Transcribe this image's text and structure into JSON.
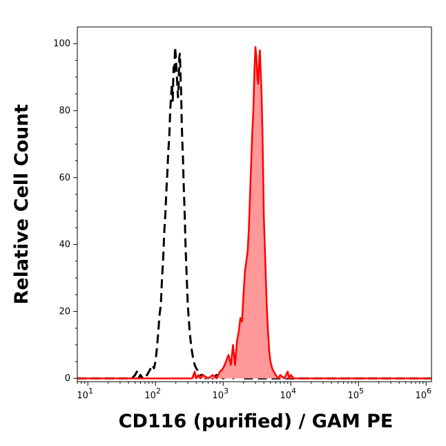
{
  "chart_data": {
    "type": "area",
    "title": "",
    "xlabel": "CD116 (purified) / GAM PE",
    "ylabel": "Relative Cell Count",
    "x_scale": "log",
    "xlim": [
      7,
      1200000
    ],
    "ylim": [
      -1,
      105
    ],
    "x_ticks": [
      {
        "base": "10",
        "exp": "1",
        "value": 10
      },
      {
        "base": "10",
        "exp": "2",
        "value": 100
      },
      {
        "base": "10",
        "exp": "3",
        "value": 1000
      },
      {
        "base": "10",
        "exp": "4",
        "value": 10000
      },
      {
        "base": "10",
        "exp": "5",
        "value": 100000
      },
      {
        "base": "10",
        "exp": "6",
        "value": 1000000
      }
    ],
    "y_ticks": [
      {
        "label": "0",
        "value": 0
      },
      {
        "label": "20",
        "value": 20
      },
      {
        "label": "40",
        "value": 40
      },
      {
        "label": "60",
        "value": 60
      },
      {
        "label": "80",
        "value": 80
      },
      {
        "label": "100",
        "value": 100
      }
    ],
    "grid": false,
    "legend": "none",
    "series": [
      {
        "style": "dashed",
        "color": "#000000",
        "fill": "none",
        "x": [
          7,
          45,
          50,
          53,
          56,
          60,
          65,
          70,
          75,
          80,
          85,
          90,
          95,
          100,
          105,
          110,
          115,
          120,
          125,
          130,
          135,
          140,
          145,
          150,
          155,
          160,
          165,
          170,
          175,
          180,
          185,
          190,
          195,
          200,
          205,
          210,
          215,
          220,
          225,
          230,
          235,
          240,
          245,
          250,
          255,
          260,
          270,
          280,
          290,
          300,
          320,
          340,
          360,
          380,
          400,
          430,
          460,
          500,
          550,
          600,
          700,
          800,
          1000,
          1200,
          1400,
          1600,
          1800,
          2000,
          1200000
        ],
        "y": [
          0,
          0,
          1,
          2,
          0,
          1,
          0,
          0,
          1,
          2,
          3,
          4,
          3,
          5,
          9,
          14,
          19,
          22,
          30,
          36,
          44,
          49,
          56,
          62,
          68,
          72,
          80,
          84,
          88,
          83,
          93,
          91,
          99,
          96,
          92,
          88,
          84,
          88,
          96,
          97,
          90,
          84,
          76,
          70,
          66,
          59,
          49,
          38,
          30,
          22,
          14,
          9,
          6,
          4,
          3,
          2,
          1,
          1,
          0,
          1,
          0,
          1,
          0,
          1,
          0,
          1,
          0,
          0,
          0
        ]
      },
      {
        "style": "solid",
        "color": "#ff0000",
        "fill": "#ff9999",
        "x": [
          7,
          350,
          380,
          400,
          430,
          460,
          500,
          600,
          700,
          800,
          900,
          1000,
          1100,
          1200,
          1300,
          1400,
          1500,
          1600,
          1700,
          1800,
          1900,
          2000,
          2100,
          2200,
          2300,
          2400,
          2500,
          2600,
          2700,
          2800,
          2900,
          3000,
          3100,
          3200,
          3300,
          3400,
          3500,
          3600,
          3700,
          3800,
          3900,
          4000,
          4200,
          4400,
          4600,
          4800,
          5000,
          5300,
          5600,
          6000,
          6500,
          7000,
          8000,
          9000,
          9500,
          10000,
          11000,
          20000,
          100000,
          1000000,
          1200000
        ],
        "y": [
          0,
          0,
          2,
          0,
          1,
          0,
          1,
          0,
          1,
          0,
          2,
          3,
          5,
          7,
          4,
          10,
          4,
          11,
          14,
          18,
          17,
          25,
          32,
          35,
          38,
          45,
          55,
          65,
          74,
          80,
          92,
          99,
          96,
          90,
          88,
          95,
          98,
          91,
          85,
          75,
          62,
          48,
          35,
          22,
          14,
          8,
          5,
          3,
          2,
          1,
          0,
          1,
          0,
          2,
          0,
          1,
          0,
          0,
          0,
          0,
          0
        ]
      }
    ]
  }
}
